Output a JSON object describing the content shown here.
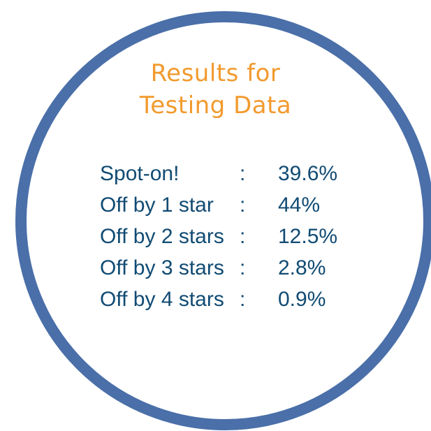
{
  "title": {
    "line1": "Results for",
    "line2": "Testing Data"
  },
  "results": [
    {
      "label": "Spot-on!",
      "separator": ":",
      "value": "39.6%"
    },
    {
      "label": "Off by 1 star",
      "separator": ":",
      "value": "44%"
    },
    {
      "label": "Off by 2 stars",
      "separator": ":",
      "value": "12.5%"
    },
    {
      "label": "Off by 3 stars",
      "separator": ":",
      "value": "2.8%"
    },
    {
      "label": "Off by 4 stars",
      "separator": ":",
      "value": "0.9%"
    }
  ],
  "colors": {
    "ring": "#4a6fa9",
    "title": "#f29a2e",
    "text": "#114b73",
    "background": "#ffffff"
  }
}
